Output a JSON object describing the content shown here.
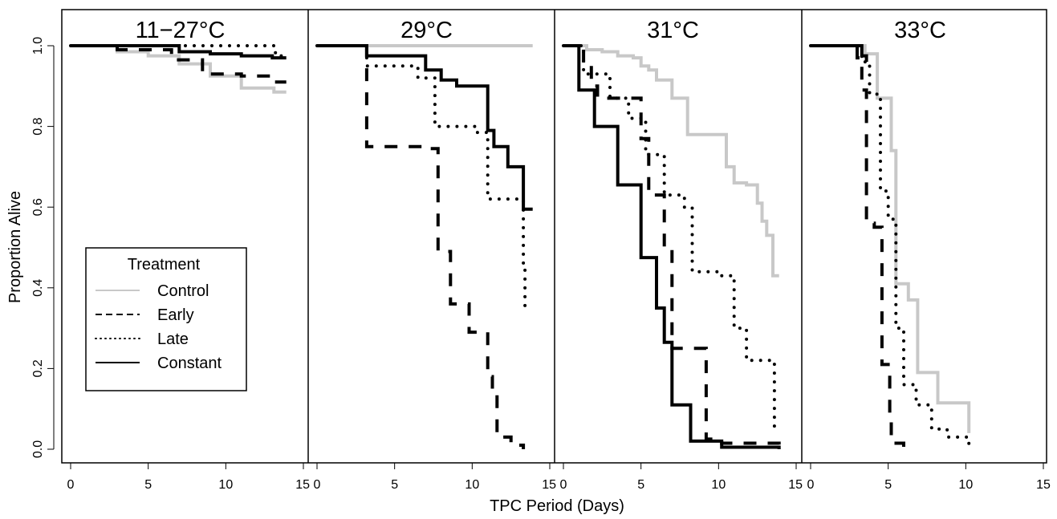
{
  "chart_data": {
    "type": "line",
    "step": true,
    "xlabel": "TPC Period (Days)",
    "ylabel": "Proportion Alive",
    "xlim": [
      0,
      15
    ],
    "ylim": [
      0,
      1
    ],
    "xticks": [
      "0",
      "5",
      "10",
      "15"
    ],
    "yticks": [
      "0.0",
      "0.2",
      "0.4",
      "0.6",
      "0.8",
      "1.0"
    ],
    "grid": false,
    "legend": {
      "title": "Treatment",
      "placement": "left-bottom (first panel)",
      "entries": [
        {
          "label": "Control",
          "style": "solid",
          "color": "#c8c8c8"
        },
        {
          "label": "Early",
          "style": "dashed",
          "color": "#000000"
        },
        {
          "label": "Late",
          "style": "dotted",
          "color": "#000000"
        },
        {
          "label": "Constant",
          "style": "solid",
          "color": "#000000"
        }
      ]
    },
    "panels": [
      {
        "title": "11−27°C",
        "series": [
          {
            "name": "Control",
            "x": [
              0,
              3,
              5,
              7,
              9,
              11,
              13.1,
              13.9
            ],
            "y": [
              1.0,
              0.985,
              0.975,
              0.955,
              0.925,
              0.895,
              0.885,
              0.885
            ]
          },
          {
            "name": "Early",
            "x": [
              0,
              3,
              4,
              6.5,
              8.5,
              11,
              13.1,
              13.9
            ],
            "y": [
              1.0,
              0.99,
              0.99,
              0.965,
              0.93,
              0.925,
              0.91,
              0.91
            ]
          },
          {
            "name": "Late",
            "x": [
              0,
              13.2,
              13.9
            ],
            "y": [
              1.0,
              0.975,
              0.975
            ]
          },
          {
            "name": "Constant",
            "x": [
              0,
              7,
              9,
              11,
              13,
              13.9
            ],
            "y": [
              1.0,
              0.985,
              0.98,
              0.975,
              0.97,
              0.97
            ]
          }
        ]
      },
      {
        "title": "29°C",
        "series": [
          {
            "name": "Control",
            "x": [
              0,
              13.9
            ],
            "y": [
              1.0,
              1.0
            ]
          },
          {
            "name": "Early",
            "x": [
              0,
              3.2,
              6.8,
              7.8,
              8.6,
              9.8,
              11,
              11.3,
              11.6,
              12.5,
              13.3
            ],
            "y": [
              1.0,
              0.75,
              0.745,
              0.49,
              0.36,
              0.29,
              0.18,
              0.14,
              0.03,
              0.01,
              0.0
            ]
          },
          {
            "name": "Late",
            "x": [
              0,
              3.2,
              6.5,
              7.6,
              10.3,
              11.0,
              13.3,
              13.4
            ],
            "y": [
              1.0,
              0.95,
              0.92,
              0.8,
              0.785,
              0.62,
              0.46,
              0.34
            ]
          },
          {
            "name": "Constant",
            "x": [
              0,
              3.2,
              7.0,
              8.0,
              9.0,
              11.0,
              11.4,
              12.3,
              12.9,
              13.3,
              13.9
            ],
            "y": [
              1.0,
              0.975,
              0.94,
              0.915,
              0.9,
              0.79,
              0.75,
              0.7,
              0.7,
              0.595,
              0.595
            ]
          }
        ]
      },
      {
        "title": "31°C",
        "series": [
          {
            "name": "Control",
            "x": [
              0,
              1.5,
              2.5,
              3.5,
              4.5,
              5.0,
              5.5,
              6.0,
              7.0,
              8.0,
              10.0,
              10.5,
              11.0,
              11.8,
              12.5,
              12.8,
              13.1,
              13.5,
              13.9
            ],
            "y": [
              1.0,
              0.99,
              0.985,
              0.975,
              0.97,
              0.95,
              0.94,
              0.915,
              0.87,
              0.78,
              0.78,
              0.7,
              0.66,
              0.655,
              0.61,
              0.565,
              0.53,
              0.43,
              0.43
            ]
          },
          {
            "name": "Early",
            "x": [
              0,
              1.3,
              1.8,
              2.2,
              3.2,
              5.0,
              5.5,
              6.5,
              7.0,
              9.2,
              10.2,
              13.9
            ],
            "y": [
              1.0,
              0.95,
              0.9,
              0.87,
              0.87,
              0.77,
              0.63,
              0.5,
              0.25,
              0.025,
              0.015,
              0.0
            ]
          },
          {
            "name": "Late",
            "x": [
              0,
              1.3,
              3.0,
              4.2,
              5.3,
              6.5,
              7.8,
              8.3,
              10.2,
              11.0,
              11.8,
              13.6
            ],
            "y": [
              1.0,
              0.93,
              0.87,
              0.82,
              0.73,
              0.63,
              0.6,
              0.44,
              0.43,
              0.3,
              0.22,
              0.05
            ]
          },
          {
            "name": "Constant",
            "x": [
              0,
              1.0,
              2.0,
              3.5,
              5.0,
              6.0,
              6.5,
              7.0,
              8.2,
              10.2,
              13.9
            ],
            "y": [
              1.0,
              0.89,
              0.8,
              0.655,
              0.475,
              0.35,
              0.265,
              0.11,
              0.02,
              0.005,
              0.0
            ]
          }
        ]
      },
      {
        "title": "33°C",
        "series": [
          {
            "name": "Control",
            "x": [
              0,
              3.5,
              4.3,
              5.2,
              5.5,
              6.3,
              6.9,
              8.2,
              10.2
            ],
            "y": [
              1.0,
              0.98,
              0.87,
              0.74,
              0.41,
              0.37,
              0.19,
              0.115,
              0.04
            ]
          },
          {
            "name": "Early",
            "x": [
              0,
              3.0,
              3.3,
              3.6,
              4.1,
              4.6,
              5.1,
              5.2,
              6.0
            ],
            "y": [
              1.0,
              0.97,
              0.89,
              0.56,
              0.55,
              0.21,
              0.07,
              0.015,
              0.0
            ]
          },
          {
            "name": "Late",
            "x": [
              0,
              3.0,
              3.3,
              3.8,
              4.5,
              5.0,
              5.5,
              6.0,
              6.8,
              7.8,
              8.8,
              10.2
            ],
            "y": [
              1.0,
              0.98,
              0.96,
              0.88,
              0.64,
              0.57,
              0.3,
              0.16,
              0.11,
              0.05,
              0.03,
              0.01
            ]
          },
          {
            "name": "Constant",
            "x": [
              0,
              2.6,
              3.3,
              3.6
            ],
            "y": [
              1.0,
              1.0,
              0.975,
              0.96
            ]
          }
        ]
      }
    ]
  }
}
